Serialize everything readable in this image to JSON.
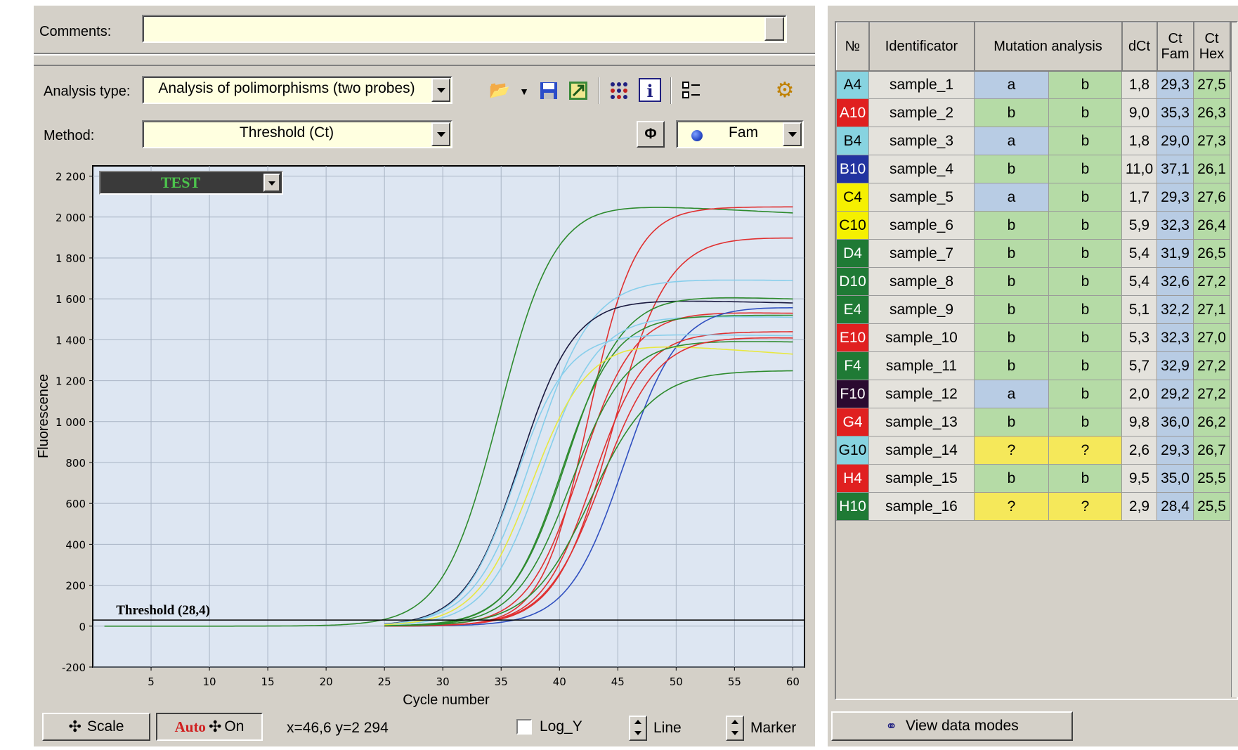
{
  "comments": {
    "label": "Comments:",
    "value": ""
  },
  "analysis_type": {
    "label": "Analysis type:",
    "value": "Analysis of polimorphisms (two probes)"
  },
  "method": {
    "label": "Method:",
    "value": "Threshold (Ct)"
  },
  "channel": {
    "value": "Fam",
    "dot_color": "#2a4cc9"
  },
  "toolbar": {
    "icons": [
      "open-folder-icon",
      "save-icon",
      "export-icon",
      "plate-grid-icon",
      "info-icon",
      "checklist-icon",
      "settings-gear-icon"
    ],
    "phi_label": "Φ"
  },
  "test_selector": {
    "value": "TEST",
    "color": "#3ca83c"
  },
  "chart_data": {
    "type": "line",
    "xlabel": "Cycle number",
    "ylabel": "Fluorescence",
    "xlim": [
      0,
      61
    ],
    "ylim": [
      -200,
      2250
    ],
    "xticks": [
      5,
      10,
      15,
      20,
      25,
      30,
      35,
      40,
      45,
      50,
      55,
      60
    ],
    "yticks": [
      -200,
      0,
      200,
      400,
      600,
      800,
      1000,
      1200,
      1400,
      1600,
      1800,
      2000,
      2200
    ],
    "ytick_labels": [
      "-200",
      "0",
      "200",
      "400",
      "600",
      "800",
      "1 000",
      "1 200",
      "1 400",
      "1 600",
      "1 800",
      "2 000",
      "2 200"
    ],
    "threshold": {
      "value": 28.4,
      "label": "Threshold (28,4)",
      "y": 30
    },
    "grid": true,
    "series": [
      {
        "color": "#2e8b2e",
        "x0": 1,
        "mid": 34.8,
        "k": 0.42,
        "top": 2070,
        "end": 2020
      },
      {
        "color": "#e03030",
        "x0": 25,
        "mid": 42.5,
        "k": 0.5,
        "top": 2050,
        "end": 2050
      },
      {
        "color": "#e03030",
        "x0": 25,
        "mid": 44.5,
        "k": 0.42,
        "top": 1910,
        "end": 1900
      },
      {
        "color": "#87ceeb",
        "x0": 25,
        "mid": 37.8,
        "k": 0.4,
        "top": 1700,
        "end": 1690
      },
      {
        "color": "#1a1a40",
        "x0": 25,
        "mid": 36.6,
        "k": 0.43,
        "top": 1600,
        "end": 1580
      },
      {
        "color": "#2e8b2e",
        "x0": 25,
        "mid": 40.6,
        "k": 0.42,
        "top": 1620,
        "end": 1600
      },
      {
        "color": "#87ceeb",
        "x0": 25,
        "mid": 38.5,
        "k": 0.42,
        "top": 1520,
        "end": 1510
      },
      {
        "color": "#e03030",
        "x0": 25,
        "mid": 41.8,
        "k": 0.44,
        "top": 1540,
        "end": 1530
      },
      {
        "color": "#2e8b2e",
        "x0": 25,
        "mid": 40.2,
        "k": 0.44,
        "top": 1520,
        "end": 1520
      },
      {
        "color": "#3050c0",
        "x0": 25,
        "mid": 45.5,
        "k": 0.42,
        "top": 1570,
        "end": 1560
      },
      {
        "color": "#e03030",
        "x0": 25,
        "mid": 42.9,
        "k": 0.45,
        "top": 1440,
        "end": 1440
      },
      {
        "color": "#87ceeb",
        "x0": 25,
        "mid": 36.2,
        "k": 0.45,
        "top": 1430,
        "end": 1420
      },
      {
        "color": "#e8e840",
        "x0": 25,
        "mid": 37.6,
        "k": 0.42,
        "top": 1390,
        "end": 1330
      },
      {
        "color": "#2e8b2e",
        "x0": 25,
        "mid": 41.0,
        "k": 0.42,
        "top": 1400,
        "end": 1390
      },
      {
        "color": "#e03030",
        "x0": 25,
        "mid": 43.6,
        "k": 0.42,
        "top": 1420,
        "end": 1410
      },
      {
        "color": "#2e8b2e",
        "x0": 25,
        "mid": 42.7,
        "k": 0.38,
        "top": 1250,
        "end": 1250
      }
    ]
  },
  "bottom_bar": {
    "scale_label": "Scale",
    "auto_label": "Auto",
    "on_label": "On",
    "coords": "x=46,6 y=2 294",
    "log_y_label": "Log_Y",
    "line_label": "Line",
    "marker_label": "Marker"
  },
  "table": {
    "headers": {
      "no": "№",
      "id": "Identificator",
      "mutation": "Mutation analysis",
      "dct": "dCt",
      "ct_fam": [
        "Ct",
        "Fam"
      ],
      "ct_hex": [
        "Ct",
        "Hex"
      ]
    },
    "rows": [
      {
        "well": "A4",
        "well_color": "#87d3e0",
        "well_text": "#000",
        "id": "sample_1",
        "m1": "a",
        "m1c": "#b8cce4",
        "m2": "b",
        "m2c": "#b5dba6",
        "dct": "1,8",
        "fam": "29,3",
        "hex": "27,5"
      },
      {
        "well": "A10",
        "well_color": "#e02020",
        "well_text": "#fff",
        "id": "sample_2",
        "m1": "b",
        "m1c": "#b5dba6",
        "m2": "b",
        "m2c": "#b5dba6",
        "dct": "9,0",
        "fam": "35,3",
        "hex": "26,3"
      },
      {
        "well": "B4",
        "well_color": "#87d3e0",
        "well_text": "#000",
        "id": "sample_3",
        "m1": "a",
        "m1c": "#b8cce4",
        "m2": "b",
        "m2c": "#b5dba6",
        "dct": "1,8",
        "fam": "29,0",
        "hex": "27,3"
      },
      {
        "well": "B10",
        "well_color": "#2233a0",
        "well_text": "#fff",
        "id": "sample_4",
        "m1": "b",
        "m1c": "#b5dba6",
        "m2": "b",
        "m2c": "#b5dba6",
        "dct": "11,0",
        "fam": "37,1",
        "hex": "26,1"
      },
      {
        "well": "C4",
        "well_color": "#f5f000",
        "well_text": "#000",
        "id": "sample_5",
        "m1": "a",
        "m1c": "#b8cce4",
        "m2": "b",
        "m2c": "#b5dba6",
        "dct": "1,7",
        "fam": "29,3",
        "hex": "27,6"
      },
      {
        "well": "C10",
        "well_color": "#f5f000",
        "well_text": "#000",
        "id": "sample_6",
        "m1": "b",
        "m1c": "#b5dba6",
        "m2": "b",
        "m2c": "#b5dba6",
        "dct": "5,9",
        "fam": "32,3",
        "hex": "26,4"
      },
      {
        "well": "D4",
        "well_color": "#1f7a35",
        "well_text": "#fff",
        "id": "sample_7",
        "m1": "b",
        "m1c": "#b5dba6",
        "m2": "b",
        "m2c": "#b5dba6",
        "dct": "5,4",
        "fam": "31,9",
        "hex": "26,5"
      },
      {
        "well": "D10",
        "well_color": "#1f7a35",
        "well_text": "#fff",
        "id": "sample_8",
        "m1": "b",
        "m1c": "#b5dba6",
        "m2": "b",
        "m2c": "#b5dba6",
        "dct": "5,4",
        "fam": "32,6",
        "hex": "27,2"
      },
      {
        "well": "E4",
        "well_color": "#1f7a35",
        "well_text": "#fff",
        "id": "sample_9",
        "m1": "b",
        "m1c": "#b5dba6",
        "m2": "b",
        "m2c": "#b5dba6",
        "dct": "5,1",
        "fam": "32,2",
        "hex": "27,1"
      },
      {
        "well": "E10",
        "well_color": "#e02020",
        "well_text": "#fff",
        "id": "sample_10",
        "m1": "b",
        "m1c": "#b5dba6",
        "m2": "b",
        "m2c": "#b5dba6",
        "dct": "5,3",
        "fam": "32,3",
        "hex": "27,0"
      },
      {
        "well": "F4",
        "well_color": "#1f7a35",
        "well_text": "#fff",
        "id": "sample_11",
        "m1": "b",
        "m1c": "#b5dba6",
        "m2": "b",
        "m2c": "#b5dba6",
        "dct": "5,7",
        "fam": "32,9",
        "hex": "27,2"
      },
      {
        "well": "F10",
        "well_color": "#2a0a30",
        "well_text": "#fff",
        "id": "sample_12",
        "m1": "a",
        "m1c": "#b8cce4",
        "m2": "b",
        "m2c": "#b5dba6",
        "dct": "2,0",
        "fam": "29,2",
        "hex": "27,2"
      },
      {
        "well": "G4",
        "well_color": "#e02020",
        "well_text": "#fff",
        "id": "sample_13",
        "m1": "b",
        "m1c": "#b5dba6",
        "m2": "b",
        "m2c": "#b5dba6",
        "dct": "9,8",
        "fam": "36,0",
        "hex": "26,2"
      },
      {
        "well": "G10",
        "well_color": "#87d3e0",
        "well_text": "#000",
        "id": "sample_14",
        "m1": "?",
        "m1c": "#f5e85a",
        "m2": "?",
        "m2c": "#f5e85a",
        "dct": "2,6",
        "fam": "29,3",
        "hex": "26,7"
      },
      {
        "well": "H4",
        "well_color": "#e02020",
        "well_text": "#fff",
        "id": "sample_15",
        "m1": "b",
        "m1c": "#b5dba6",
        "m2": "b",
        "m2c": "#b5dba6",
        "dct": "9,5",
        "fam": "35,0",
        "hex": "25,5"
      },
      {
        "well": "H10",
        "well_color": "#1f7a35",
        "well_text": "#fff",
        "id": "sample_16",
        "m1": "?",
        "m1c": "#f5e85a",
        "m2": "?",
        "m2c": "#f5e85a",
        "dct": "2,9",
        "fam": "28,4",
        "hex": "25,5"
      }
    ]
  },
  "view_data_modes": {
    "label": "View data modes"
  }
}
